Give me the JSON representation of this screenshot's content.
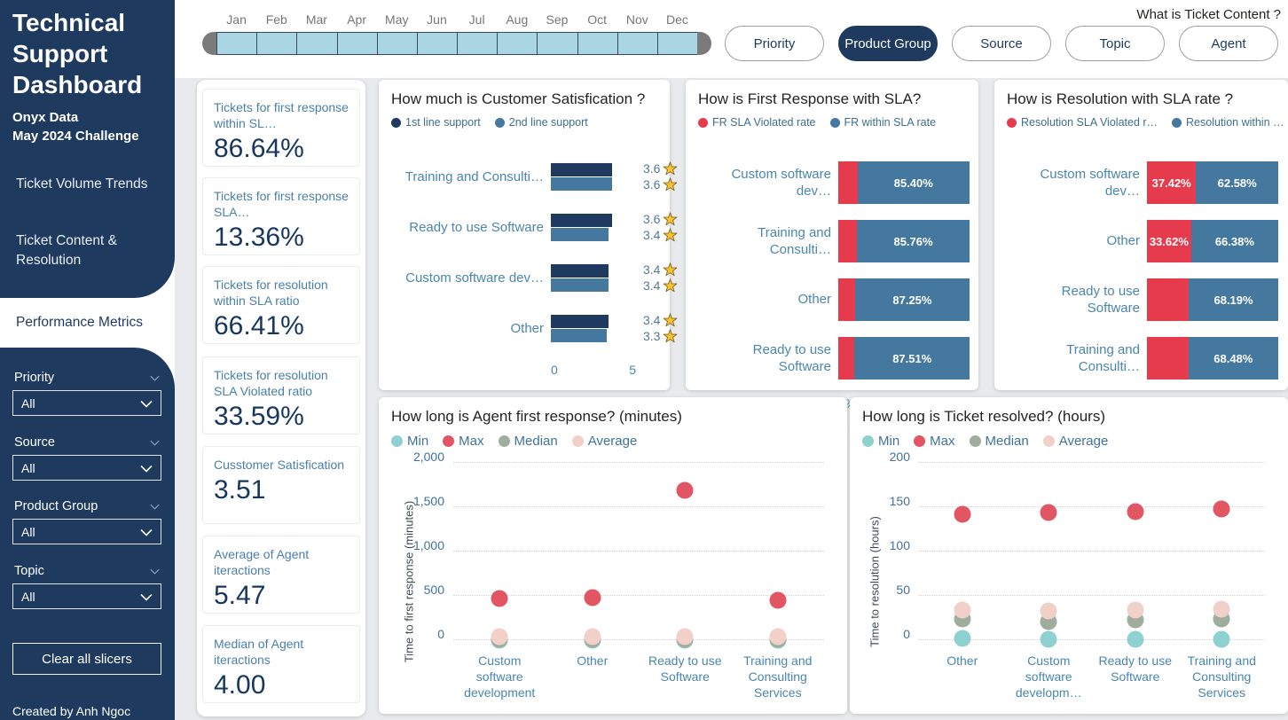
{
  "colors": {
    "navy": "#1f3a5f",
    "steel_blue": "#45789e",
    "red": "#e63b4c",
    "max_red": "#e25563",
    "min_teal": "#8fd0d0",
    "median_sage": "#9fad9f",
    "avg_pink": "#f1d0ca",
    "star_gold": "#f6c333",
    "background": "#e8eaed"
  },
  "sidebar": {
    "title": "Technical Support Dashboard",
    "subtitle1": "Onyx Data",
    "subtitle2": "May 2024 Challenge",
    "nav": [
      {
        "label": "Ticket Volume Trends",
        "active": false
      },
      {
        "label": "Ticket Content & Resolution",
        "active": false
      },
      {
        "label": "Performance Metrics",
        "active": true
      }
    ],
    "slicers": [
      {
        "label": "Priority",
        "value": "All"
      },
      {
        "label": "Source",
        "value": "All"
      },
      {
        "label": "Product Group",
        "value": "All"
      },
      {
        "label": "Topic",
        "value": "All"
      }
    ],
    "clear_button": "Clear all slicers",
    "credit": "Created by Anh Ngoc"
  },
  "header": {
    "question": "What is Ticket Content ?",
    "months": [
      "Jan",
      "Feb",
      "Mar",
      "Apr",
      "May",
      "Jun",
      "Jul",
      "Aug",
      "Sep",
      "Oct",
      "Nov",
      "Dec"
    ],
    "filter_buttons": [
      {
        "label": "Priority",
        "active": false
      },
      {
        "label": "Product Group",
        "active": true
      },
      {
        "label": "Source",
        "active": false
      },
      {
        "label": "Topic",
        "active": false
      },
      {
        "label": "Agent",
        "active": false
      }
    ]
  },
  "kpis": [
    {
      "label": "Tickets for first response within SL…",
      "value": "86.64%"
    },
    {
      "label": "Tickets for first response SLA…",
      "value": "13.36%"
    },
    {
      "label": "Tickets for resolution within SLA ratio",
      "value": "66.41%"
    },
    {
      "label": "Tickets for resolution SLA Violated ratio",
      "value": "33.59%"
    },
    {
      "label": "Cusstomer Satisfication",
      "value": "3.51"
    },
    {
      "label": "Average of Agent iteractions",
      "value": "5.47"
    },
    {
      "label": "Median of Agent iteractions",
      "value": "4.00"
    }
  ],
  "chart_data": [
    {
      "type": "bar",
      "orientation": "horizontal",
      "title": "How much is Customer Satisfication ?",
      "legend": [
        {
          "name": "1st line support",
          "color": "#1f3a5f"
        },
        {
          "name": "2nd line support",
          "color": "#45789e"
        }
      ],
      "categories": [
        "Training and Consulti…",
        "Ready to use Software",
        "Custom software dev…",
        "Other"
      ],
      "series": [
        {
          "name": "1st line support",
          "color": "#1f3a5f",
          "values": [
            3.6,
            3.6,
            3.4,
            3.4
          ]
        },
        {
          "name": "2nd line support",
          "color": "#45789e",
          "values": [
            3.6,
            3.4,
            3.4,
            3.3
          ]
        }
      ],
      "xlim": [
        0,
        5
      ],
      "x_ticks": [
        "0",
        "5"
      ],
      "star_icon": true
    },
    {
      "type": "bar",
      "stacked": true,
      "title": "How is First Response with SLA?",
      "legend": [
        {
          "name": "FR SLA Violated rate",
          "color": "#e63b4c"
        },
        {
          "name": "FR within SLA rate",
          "color": "#45789e"
        }
      ],
      "categories": [
        "Custom software dev…",
        "Training and Consulti…",
        "Other",
        "Ready to use Software"
      ],
      "series": [
        {
          "name": "FR SLA Violated rate",
          "color": "#e63b4c",
          "values": [
            14.6,
            14.24,
            12.75,
            12.49
          ],
          "labels": [
            "",
            "",
            "",
            ""
          ]
        },
        {
          "name": "FR within SLA rate",
          "color": "#45789e",
          "values": [
            85.4,
            85.76,
            87.25,
            87.51
          ],
          "labels": [
            "85.40%",
            "85.76%",
            "87.25%",
            "87.51%"
          ]
        }
      ],
      "xlim": [
        0,
        100
      ],
      "x_ticks": [
        "0%",
        "50%",
        "100%"
      ]
    },
    {
      "type": "bar",
      "stacked": true,
      "title": "How is Resolution with SLA rate ?",
      "legend": [
        {
          "name": "Resolution SLA Violated r…",
          "color": "#e63b4c"
        },
        {
          "name": "Resolution within …",
          "color": "#45789e"
        }
      ],
      "categories": [
        "Custom software dev…",
        "Other",
        "Ready to use Software",
        "Training and Consulti…"
      ],
      "series": [
        {
          "name": "Resolution SLA Violated rate",
          "color": "#e63b4c",
          "values": [
            37.42,
            33.62,
            31.81,
            31.52
          ],
          "labels": [
            "37.42%",
            "33.62%",
            "",
            ""
          ]
        },
        {
          "name": "Resolution within SLA rate",
          "color": "#45789e",
          "values": [
            62.58,
            66.38,
            68.19,
            68.48
          ],
          "labels": [
            "62.58%",
            "66.38%",
            "68.19%",
            "68.48%"
          ]
        }
      ],
      "xlim": [
        0,
        100
      ],
      "x_ticks": [
        "0%",
        "50%",
        "100%"
      ]
    },
    {
      "type": "scatter",
      "title": "How long is Agent first response? (minutes)",
      "ylabel": "Time to first response (minutes)",
      "ylim": [
        0,
        2000
      ],
      "y_ticks": [
        {
          "v": 0,
          "label": "0"
        },
        {
          "v": 500,
          "label": "500"
        },
        {
          "v": 1000,
          "label": "1,000"
        },
        {
          "v": 1500,
          "label": "1,500"
        },
        {
          "v": 2000,
          "label": "2,000"
        }
      ],
      "legend": [
        {
          "name": "Min",
          "color": "#8fd0d0"
        },
        {
          "name": "Max",
          "color": "#e25563"
        },
        {
          "name": "Median",
          "color": "#9fad9f"
        },
        {
          "name": "Average",
          "color": "#f1d0ca"
        }
      ],
      "categories": [
        "Custom software development",
        "Other",
        "Ready to use Software",
        "Training and Consulting Services"
      ],
      "series": [
        {
          "name": "Min",
          "color": "#8fd0d0",
          "values": [
            1,
            1,
            1,
            1
          ]
        },
        {
          "name": "Median",
          "color": "#9fad9f",
          "values": [
            15,
            14,
            15,
            15
          ]
        },
        {
          "name": "Average",
          "color": "#f1d0ca",
          "values": [
            40,
            42,
            38,
            41
          ]
        },
        {
          "name": "Max",
          "color": "#e25563",
          "values": [
            470,
            480,
            1686,
            455
          ]
        }
      ]
    },
    {
      "type": "scatter",
      "title": "How long is Ticket resolved? (hours)",
      "ylabel": "Time to resolution (hours)",
      "ylim": [
        0,
        200
      ],
      "y_ticks": [
        {
          "v": 0,
          "label": "0"
        },
        {
          "v": 50,
          "label": "50"
        },
        {
          "v": 100,
          "label": "100"
        },
        {
          "v": 150,
          "label": "150"
        },
        {
          "v": 200,
          "label": "200"
        }
      ],
      "legend": [
        {
          "name": "Min",
          "color": "#8fd0d0"
        },
        {
          "name": "Max",
          "color": "#e25563"
        },
        {
          "name": "Median",
          "color": "#9fad9f"
        },
        {
          "name": "Average",
          "color": "#f1d0ca"
        }
      ],
      "categories": [
        "Other",
        "Custom software developm…",
        "Ready to use Software",
        "Training and Consulting Services"
      ],
      "series": [
        {
          "name": "Min",
          "color": "#8fd0d0",
          "values": [
            2,
            1,
            1,
            1
          ]
        },
        {
          "name": "Median",
          "color": "#9fad9f",
          "values": [
            24,
            21,
            23,
            24
          ]
        },
        {
          "name": "Average",
          "color": "#f1d0ca",
          "values": [
            34,
            33,
            34,
            35
          ]
        },
        {
          "name": "Max",
          "color": "#e25563",
          "values": [
            142,
            144,
            145,
            148
          ]
        }
      ]
    }
  ]
}
